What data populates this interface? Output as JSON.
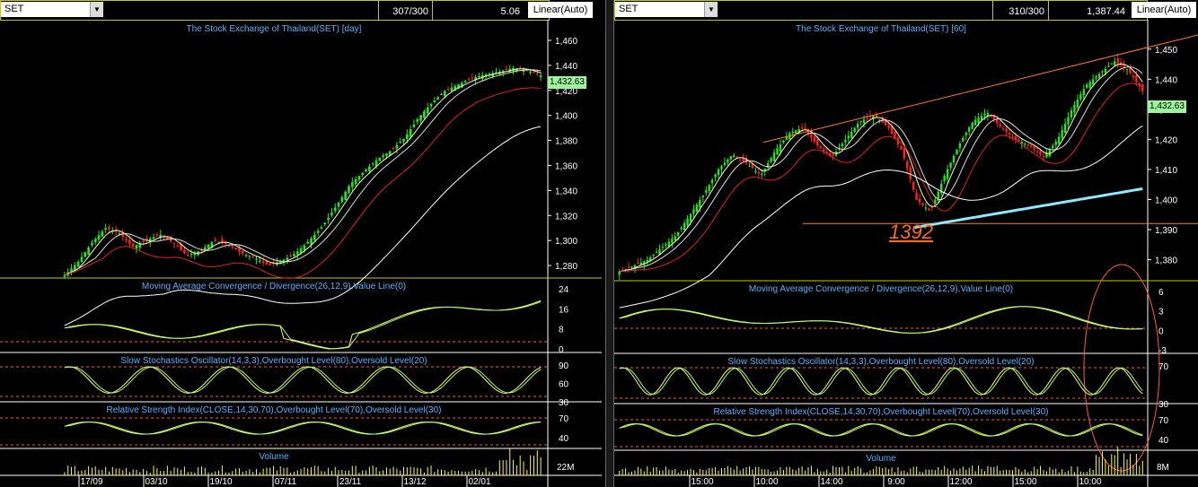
{
  "divider": "",
  "left": {
    "symbol": "SET",
    "bars": "307/300",
    "value": "5.06",
    "scale": "Linear(Auto)",
    "title": "The Stock Exchange of Thailand(SET) [day]",
    "price_label": "1,432.63",
    "price_ticks": [
      "1,460",
      "1,440",
      "1,420",
      "1,400",
      "1,380",
      "1,360",
      "1,340",
      "1,320",
      "1,300",
      "1,280"
    ],
    "macd_title": "Moving Average Convergence / Divergence(26,12,9),Value Line(0)",
    "macd_ticks": [
      "24",
      "16",
      "8",
      "0"
    ],
    "stoch_title": "Slow Stochastics Oscillator(14,3,3),Overbought Level(80),Oversold Level(20)",
    "stoch_ticks": [
      "90",
      "60",
      "30"
    ],
    "rsi_title": "Relative Strength Index(CLOSE,14,30,70),Overbought Level(70),Oversold Level(30)",
    "rsi_ticks": [
      "70",
      "40"
    ],
    "volume_title": "Volume",
    "volume_tick": "22M",
    "dates": [
      "17/09",
      "03/10",
      "19/10",
      "07/11",
      "23/11",
      "13/12",
      "02/01"
    ]
  },
  "right": {
    "symbol": "SET",
    "bars": "310/300",
    "value": "1,387.44",
    "scale": "Linear(Auto)",
    "title": "The Stock Exchange of Thailand(SET) [60]",
    "price_label": "1,432.63",
    "annotation": "1392",
    "price_ticks": [
      "1,450",
      "1,440",
      "1,430",
      "1,420",
      "1,410",
      "1,400",
      "1,390",
      "1,380"
    ],
    "macd_title": "Moving Average Convergence / Divergence(26,12,9),Value Line(0)",
    "macd_ticks": [
      "6",
      "3",
      "0",
      "-3"
    ],
    "stoch_title": "Slow Stochastics Oscillator(14,3,3),Overbought Level(80),Oversold Level(20)",
    "stoch_ticks": [
      "70",
      "30"
    ],
    "rsi_title": "Relative Strength Index(CLOSE,14,30,70),Overbought Level(70),Oversold Level(30)",
    "rsi_ticks": [
      "70",
      "40"
    ],
    "volume_title": "Volume",
    "volume_tick": "8M",
    "times": [
      "15:00",
      "10:00",
      "14:00",
      "9:00",
      "12:00",
      "15:00",
      "10:00"
    ]
  },
  "chart_data": [
    {
      "type": "candlestick",
      "title": "The Stock Exchange of Thailand(SET) [day]",
      "y_range": [
        1270,
        1465
      ],
      "last_price": 1432.63,
      "close_path": [
        1272,
        1283,
        1298,
        1310,
        1306,
        1295,
        1300,
        1305,
        1298,
        1288,
        1292,
        1300,
        1297,
        1290,
        1286,
        1280,
        1284,
        1290,
        1300,
        1312,
        1328,
        1345,
        1355,
        1365,
        1372,
        1382,
        1398,
        1410,
        1420,
        1425,
        1430,
        1433,
        1435,
        1438,
        1436,
        1432
      ],
      "indicators": [
        {
          "name": "MACD(26,12,9)",
          "levels": [
            24,
            16,
            8,
            0
          ],
          "zero_line": 0
        },
        {
          "name": "Slow Stochastics(14,3,3)",
          "overbought": 80,
          "oversold": 20
        },
        {
          "name": "RSI(14)",
          "overbought": 70,
          "oversold": 30
        }
      ],
      "x_labels": [
        "17/09",
        "03/10",
        "19/10",
        "07/11",
        "23/11",
        "13/12",
        "02/01"
      ]
    },
    {
      "type": "candlestick",
      "title": "The Stock Exchange of Thailand(SET) [60]",
      "y_range": [
        1373,
        1455
      ],
      "last_price": 1432.63,
      "support_level": 1392,
      "close_path": [
        1376,
        1378,
        1380,
        1384,
        1388,
        1395,
        1402,
        1410,
        1415,
        1412,
        1408,
        1416,
        1422,
        1424,
        1418,
        1414,
        1420,
        1426,
        1428,
        1424,
        1416,
        1400,
        1396,
        1408,
        1418,
        1426,
        1429,
        1424,
        1420,
        1418,
        1414,
        1420,
        1430,
        1438,
        1442,
        1446,
        1443,
        1436
      ],
      "indicators": [
        {
          "name": "MACD(26,12,9)",
          "levels": [
            6,
            3,
            0,
            -3
          ],
          "zero_line": 0
        },
        {
          "name": "Slow Stochastics(14,3,3)",
          "overbought": 80,
          "oversold": 20
        },
        {
          "name": "RSI(14)",
          "overbought": 70,
          "oversold": 30
        }
      ],
      "x_labels": [
        "15:00",
        "10:00",
        "14:00",
        "9:00",
        "12:00",
        "15:00",
        "10:00"
      ]
    }
  ]
}
